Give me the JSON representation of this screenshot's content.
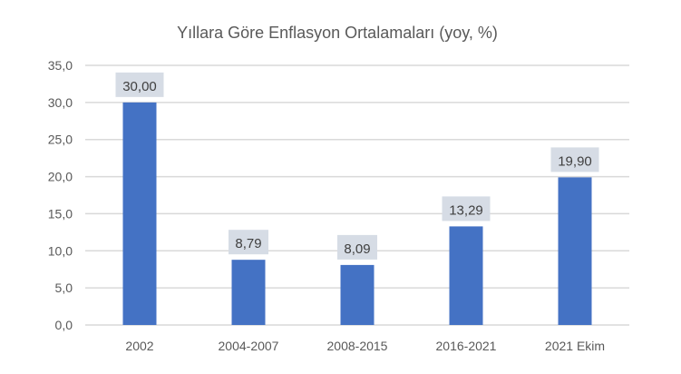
{
  "chart_data": {
    "type": "bar",
    "title": "Yıllara Göre Enflasyon Ortalamaları (yoy, %)",
    "xlabel": "",
    "ylabel": "",
    "categories": [
      "2002",
      "2004-2007",
      "2008-2015",
      "2016-2021",
      "2021 Ekim"
    ],
    "values": [
      30.0,
      8.79,
      8.09,
      13.29,
      19.9
    ],
    "data_labels": [
      "30,00",
      "8,79",
      "8,09",
      "13,29",
      "19,90"
    ],
    "ylim": [
      0,
      35
    ],
    "yticks": [
      0,
      5,
      10,
      15,
      20,
      25,
      30,
      35
    ],
    "ytick_labels": [
      "0,0",
      "5,0",
      "10,0",
      "15,0",
      "20,0",
      "25,0",
      "30,0",
      "35,0"
    ],
    "grid": true,
    "legend": "none",
    "colors": {
      "bar": "#4472c4",
      "label_box": "#d6dce5",
      "grid": "#d9d9d9",
      "text": "#595959"
    }
  }
}
